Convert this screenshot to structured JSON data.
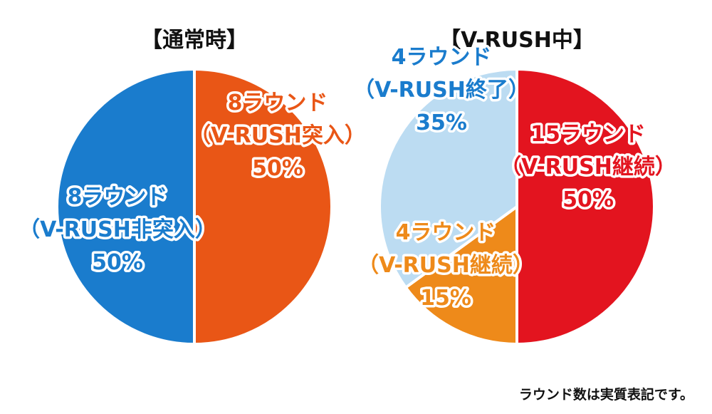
{
  "chart_data": [
    {
      "type": "pie",
      "title": "【通常時】",
      "slices": [
        {
          "lines": [
            "8ラウンド",
            "（V-RUSH突入）",
            "50%"
          ],
          "value": 50,
          "color": "#e95616",
          "text_color": "#e95616"
        },
        {
          "lines": [
            "8ラウンド",
            "（V-RUSH非突入）",
            "50%"
          ],
          "value": 50,
          "color": "#1a7ccd",
          "text_color": "#1a7ccd"
        }
      ]
    },
    {
      "type": "pie",
      "title": "【V-RUSH中】",
      "slices": [
        {
          "lines": [
            "15ラウンド",
            "（V-RUSH継続）",
            "50%"
          ],
          "value": 50,
          "color": "#e3141f",
          "text_color": "#e3141f"
        },
        {
          "lines": [
            "4ラウンド",
            "（V-RUSH継続）",
            "15%"
          ],
          "value": 15,
          "color": "#ee8a1a",
          "text_color": "#ee8a1a"
        },
        {
          "lines": [
            "4ラウンド",
            "（V-RUSH終了）",
            "35%"
          ],
          "value": 35,
          "color": "#bcdcf2",
          "text_color": "#1a7ccd"
        }
      ]
    }
  ],
  "footnote": "ラウンド数は実質表記です。"
}
